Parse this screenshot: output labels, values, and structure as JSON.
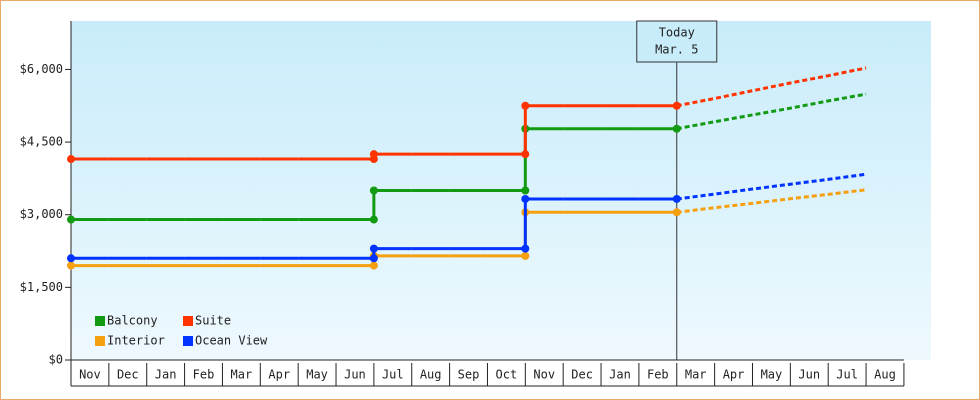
{
  "chart_data": {
    "type": "step-line",
    "categories": [
      "Nov",
      "Dec",
      "Jan",
      "Feb",
      "Mar",
      "Apr",
      "May",
      "Jun",
      "Jul",
      "Aug",
      "Sep",
      "Oct",
      "Nov",
      "Dec",
      "Jan",
      "Feb",
      "Mar",
      "Apr",
      "May",
      "Jun",
      "Jul",
      "Aug"
    ],
    "ylim": [
      0,
      7000
    ],
    "yticks": [
      {
        "value": 0,
        "label": "$0"
      },
      {
        "value": 1500,
        "label": "$1,500"
      },
      {
        "value": 3000,
        "label": "$3,000"
      },
      {
        "value": 4500,
        "label": "$4,500"
      },
      {
        "value": 6000,
        "label": "$6,000"
      }
    ],
    "annotation": {
      "lines": [
        "Today",
        "Mar. 5"
      ],
      "category": 16
    },
    "legend": "lower-left",
    "series": [
      {
        "name": "Balcony",
        "color": "#139a13",
        "values": [
          2900,
          2900,
          2900,
          2900,
          2900,
          2900,
          2900,
          2900,
          3500,
          3500,
          3500,
          3500,
          4775,
          4775,
          4775,
          4775,
          null,
          null,
          null,
          null,
          null,
          null
        ],
        "projected": [
          null,
          null,
          null,
          null,
          null,
          null,
          null,
          null,
          null,
          null,
          null,
          null,
          null,
          null,
          null,
          null,
          4775,
          4920,
          5060,
          5200,
          5350,
          5490
        ]
      },
      {
        "name": "Suite",
        "color": "#ff3300",
        "values": [
          4150,
          4150,
          4150,
          4150,
          4150,
          4150,
          4150,
          4150,
          4250,
          4250,
          4250,
          4250,
          5250,
          5250,
          5250,
          5250,
          null,
          null,
          null,
          null,
          null,
          null
        ],
        "projected": [
          null,
          null,
          null,
          null,
          null,
          null,
          null,
          null,
          null,
          null,
          null,
          null,
          null,
          null,
          null,
          null,
          5250,
          5400,
          5560,
          5720,
          5870,
          6030
        ]
      },
      {
        "name": "Interior",
        "color": "#f5a00f",
        "values": [
          1950,
          1950,
          1950,
          1950,
          1950,
          1950,
          1950,
          1950,
          2150,
          2150,
          2150,
          2150,
          3050,
          3050,
          3050,
          3050,
          null,
          null,
          null,
          null,
          null,
          null
        ],
        "projected": [
          null,
          null,
          null,
          null,
          null,
          null,
          null,
          null,
          null,
          null,
          null,
          null,
          null,
          null,
          null,
          null,
          3050,
          3145,
          3235,
          3330,
          3420,
          3515
        ]
      },
      {
        "name": "Ocean View",
        "color": "#0033ff",
        "values": [
          2100,
          2100,
          2100,
          2100,
          2100,
          2100,
          2100,
          2100,
          2300,
          2300,
          2300,
          2300,
          3325,
          3325,
          3325,
          3325,
          null,
          null,
          null,
          null,
          null,
          null
        ],
        "projected": [
          null,
          null,
          null,
          null,
          null,
          null,
          null,
          null,
          null,
          null,
          null,
          null,
          null,
          null,
          null,
          null,
          3325,
          3425,
          3530,
          3630,
          3730,
          3835
        ]
      }
    ]
  }
}
